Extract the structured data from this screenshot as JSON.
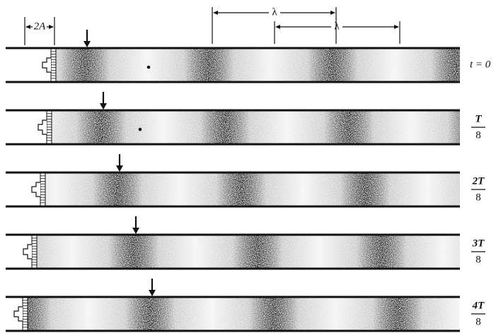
{
  "dimensions": {
    "amplitude": "2A",
    "wavelength_top": "λ",
    "wavelength_bottom": "λ"
  },
  "frames": [
    {
      "label": "t = 0"
    },
    {
      "numerator": "T",
      "denominator": "8"
    },
    {
      "numerator": "2T",
      "denominator": "8"
    },
    {
      "numerator": "3T",
      "denominator": "8"
    },
    {
      "numerator": "4T",
      "denominator": "8"
    }
  ]
}
